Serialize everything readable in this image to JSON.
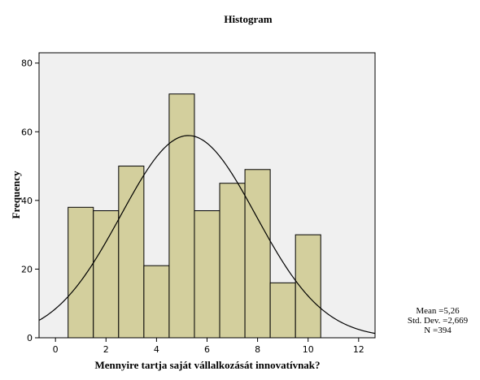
{
  "chart_data": {
    "type": "bar",
    "title": "Histogram",
    "xlabel": "Mennyire tartja saját vállalkozását innovatívnak?",
    "ylabel": "Frequency",
    "xlim": [
      -0.65,
      12.65
    ],
    "ylim": [
      0,
      83
    ],
    "xticks": [
      0,
      2,
      4,
      6,
      8,
      10,
      12
    ],
    "yticks": [
      0,
      20,
      40,
      60,
      80
    ],
    "bin_width": 1,
    "bins": [
      {
        "x": 1,
        "value": 38
      },
      {
        "x": 2,
        "value": 37
      },
      {
        "x": 3,
        "value": 50
      },
      {
        "x": 4,
        "value": 21
      },
      {
        "x": 5,
        "value": 71
      },
      {
        "x": 6,
        "value": 37
      },
      {
        "x": 7,
        "value": 45
      },
      {
        "x": 8,
        "value": 49
      },
      {
        "x": 9,
        "value": 16
      },
      {
        "x": 10,
        "value": 30
      }
    ],
    "normal_curve": {
      "mean": 5.26,
      "sd": 2.669,
      "n": 394
    },
    "stats": [
      "Mean =5,26",
      "Std. Dev. =2,669",
      "N =394"
    ],
    "colors": {
      "plot_background": "#f0f0f0",
      "bar_fill": "#d3cf9d",
      "bar_stroke": "#000000",
      "curve": "#000000"
    },
    "grid": false
  }
}
